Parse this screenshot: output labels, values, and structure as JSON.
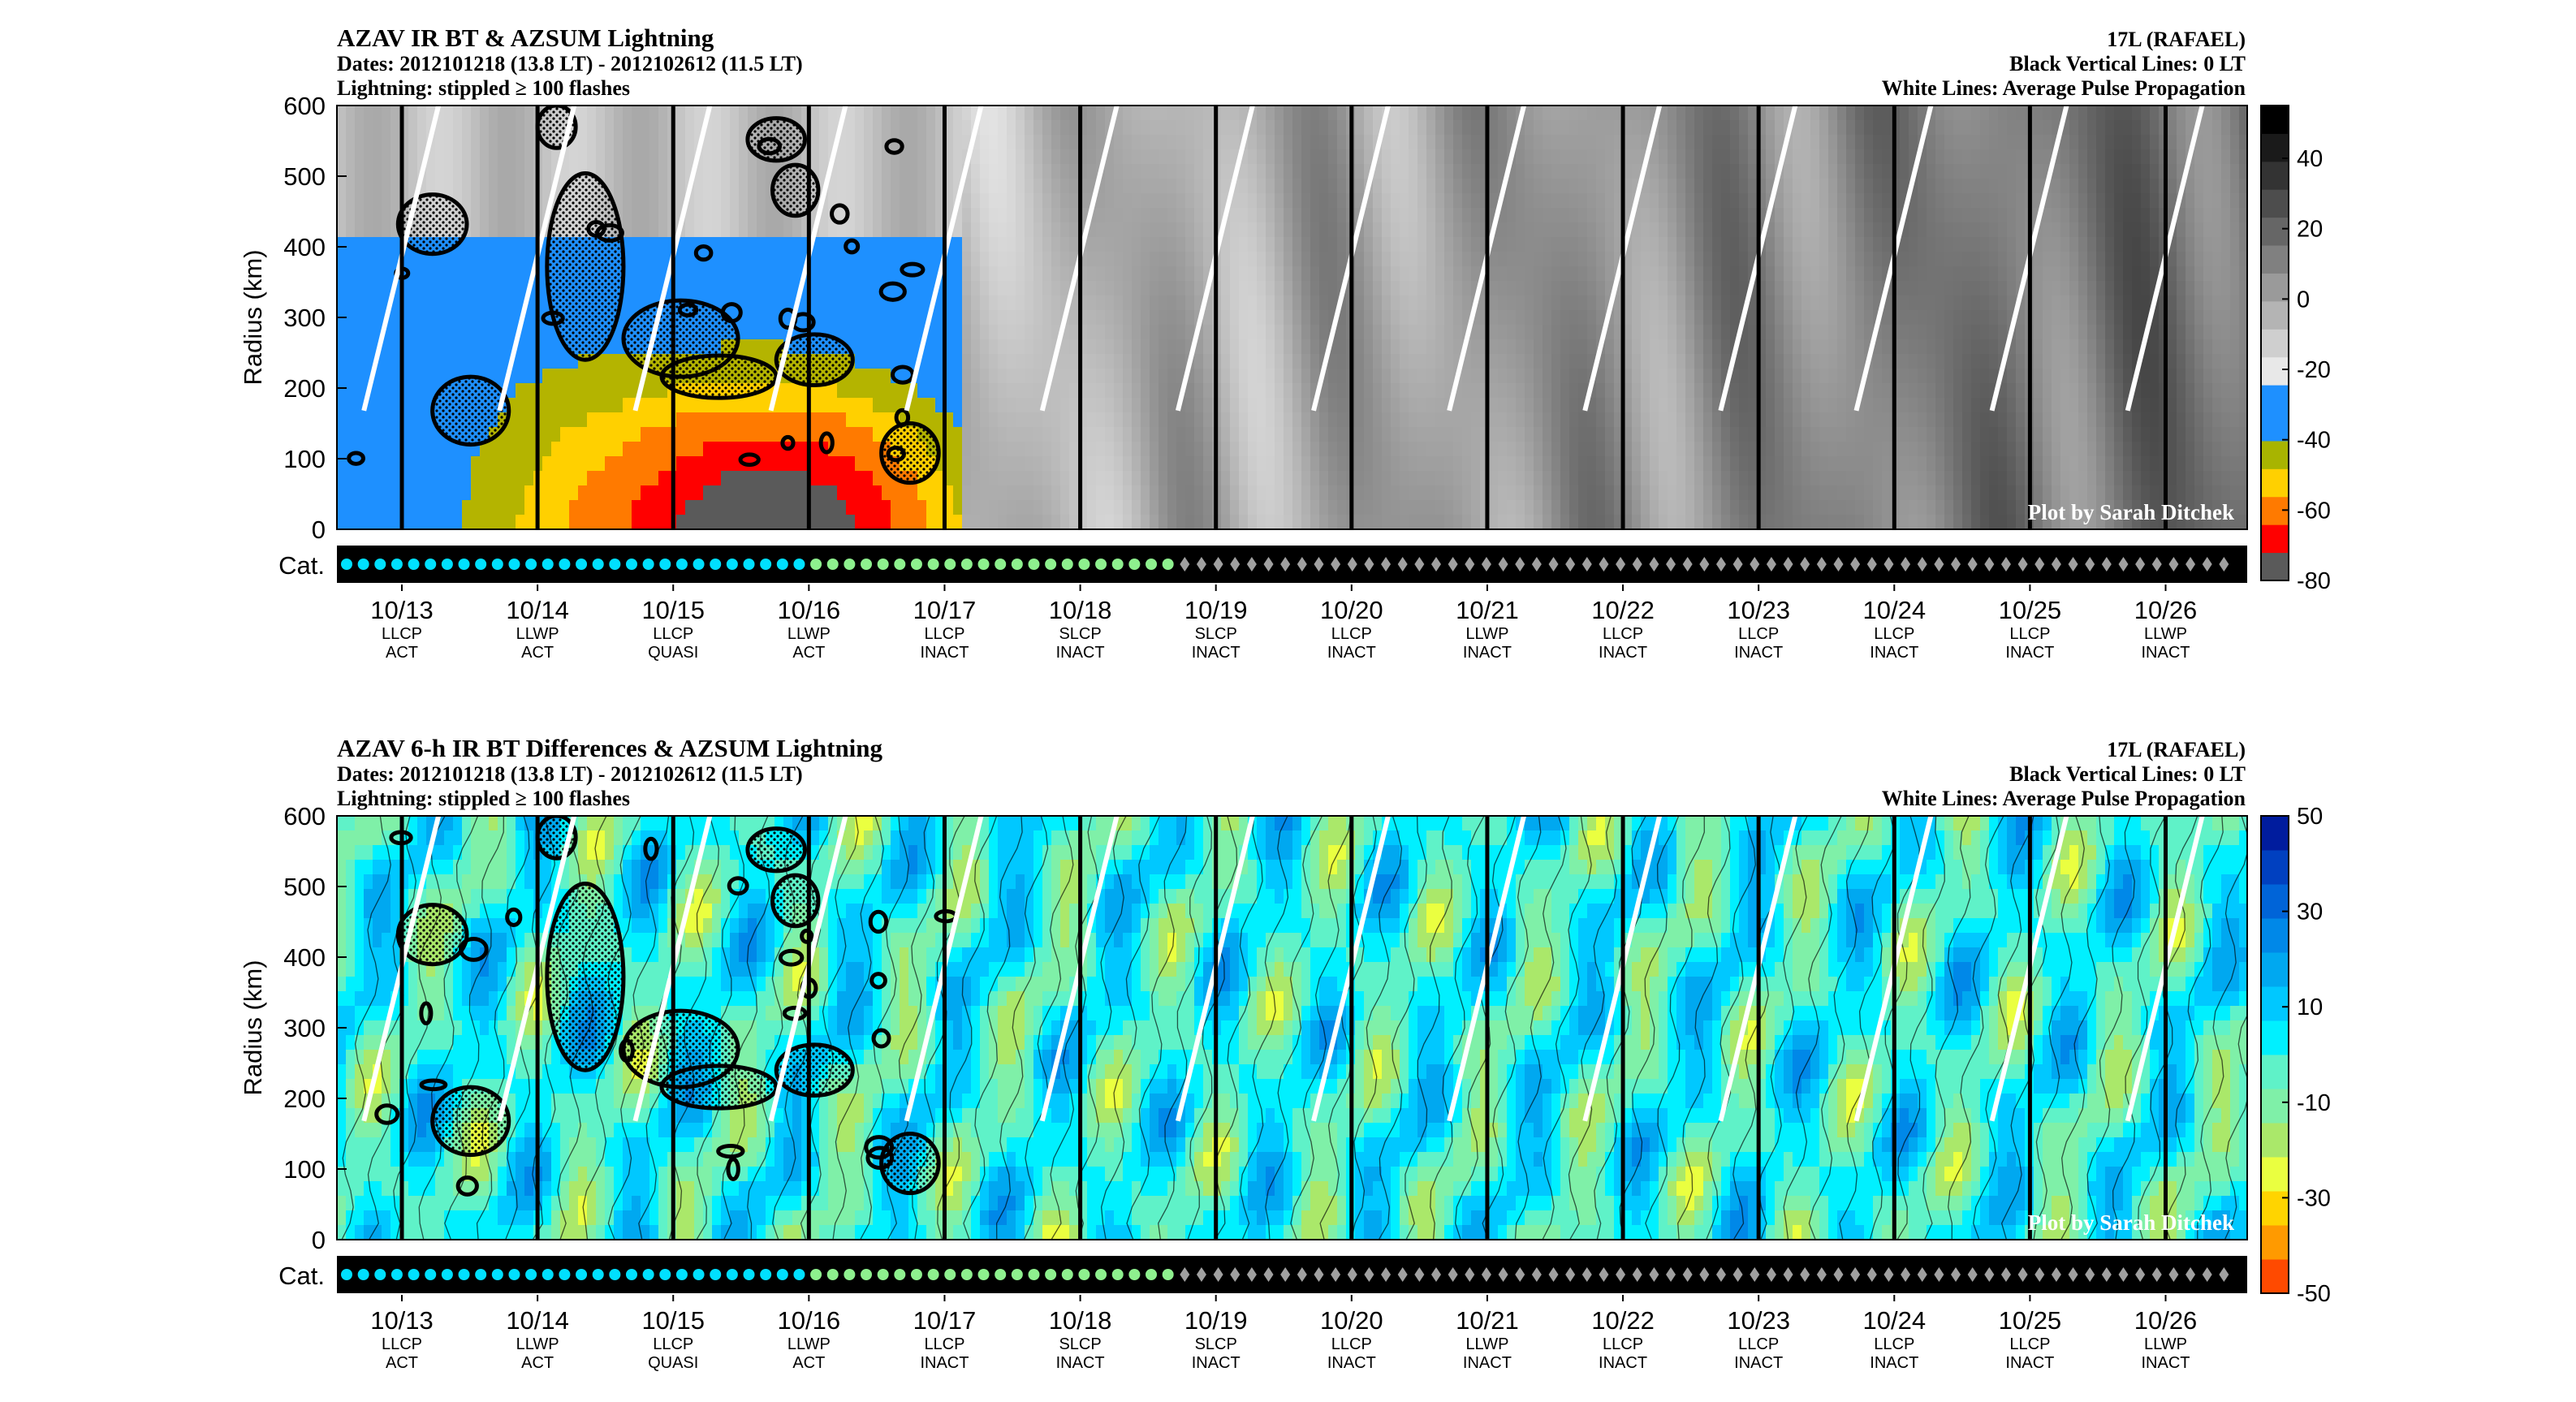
{
  "colors": {
    "ir_scale": [
      "#5a5a5a",
      "#ff0000",
      "#ff7a00",
      "#ffd000",
      "#a8b400",
      "#1e90ff",
      "#1e90ff",
      "#e8e8e8",
      "#cfcfcf",
      "#b4b4b4",
      "#9a9a9a",
      "#808080",
      "#666666",
      "#4d4d4d",
      "#333333",
      "#1a1a1a",
      "#000000"
    ],
    "diff_scale": [
      "#ff4a00",
      "#ff9a00",
      "#ffd400",
      "#eaff40",
      "#aae86a",
      "#7ff0a8",
      "#5ff2c8",
      "#00f0ff",
      "#00c8ff",
      "#00a8f0",
      "#0088e8",
      "#0064d8",
      "#0040c0",
      "#001c9e"
    ],
    "contour": "#000000",
    "propagation": "#ffffff",
    "cat_dot": "#00e0ff",
    "cat_dot_light": "#8ef08e",
    "cat_diamond": "#a0a0a0"
  },
  "chart_data": [
    {
      "type": "heatmap",
      "title": "AZAV IR BT & AZSUM Lightning",
      "subtitle_lines": [
        "Dates: 2012101218 (13.8 LT) - 2012102612 (11.5 LT)",
        "Lightning: stippled ≥ 100 flashes"
      ],
      "right_lines": [
        "17L (RAFAEL)",
        "Black Vertical Lines: 0 LT",
        "White Lines: Average Pulse Propagation"
      ],
      "ylabel": "Radius (km)",
      "ylim": [
        0,
        600
      ],
      "yticks": [
        "0",
        "100",
        "200",
        "300",
        "400",
        "500",
        "600"
      ],
      "colorbar_ticks": [
        "40",
        "20",
        "0",
        "-20",
        "-40",
        "-60",
        "-80"
      ],
      "colorbar_range": [
        -80,
        55
      ],
      "credit": "Plot by Sarah Ditchek",
      "cat_label": "Cat."
    },
    {
      "type": "heatmap",
      "title": "AZAV 6-h IR BT Differences & AZSUM Lightning",
      "subtitle_lines": [
        "Dates: 2012101218 (13.8 LT) - 2012102612 (11.5 LT)",
        "Lightning: stippled ≥ 100 flashes"
      ],
      "right_lines": [
        "17L (RAFAEL)",
        "Black Vertical Lines: 0 LT",
        "White Lines: Average Pulse Propagation"
      ],
      "ylabel": "Radius (km)",
      "ylim": [
        0,
        600
      ],
      "yticks": [
        "0",
        "100",
        "200",
        "300",
        "400",
        "500",
        "600"
      ],
      "colorbar_ticks": [
        "50",
        "30",
        "10",
        "-10",
        "-30",
        "-50"
      ],
      "colorbar_range": [
        -50,
        50
      ],
      "credit": "Plot by Sarah Ditchek",
      "cat_label": "Cat."
    }
  ],
  "days": [
    {
      "date": "10/13",
      "type": "LLCP",
      "state": "ACT"
    },
    {
      "date": "10/14",
      "type": "LLWP",
      "state": "ACT"
    },
    {
      "date": "10/15",
      "type": "LLCP",
      "state": "QUASI"
    },
    {
      "date": "10/16",
      "type": "LLWP",
      "state": "ACT"
    },
    {
      "date": "10/17",
      "type": "LLCP",
      "state": "INACT"
    },
    {
      "date": "10/18",
      "type": "SLCP",
      "state": "INACT"
    },
    {
      "date": "10/19",
      "type": "SLCP",
      "state": "INACT"
    },
    {
      "date": "10/20",
      "type": "LLCP",
      "state": "INACT"
    },
    {
      "date": "10/21",
      "type": "LLWP",
      "state": "INACT"
    },
    {
      "date": "10/22",
      "type": "LLCP",
      "state": "INACT"
    },
    {
      "date": "10/23",
      "type": "LLCP",
      "state": "INACT"
    },
    {
      "date": "10/24",
      "type": "LLCP",
      "state": "INACT"
    },
    {
      "date": "10/25",
      "type": "LLCP",
      "state": "INACT"
    },
    {
      "date": "10/26",
      "type": "LLWP",
      "state": "INACT"
    }
  ]
}
